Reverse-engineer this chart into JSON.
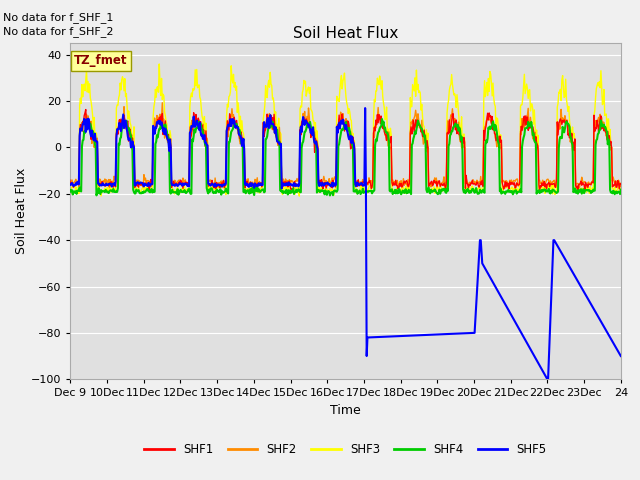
{
  "title": "Soil Heat Flux",
  "ylabel": "Soil Heat Flux",
  "xlabel": "Time",
  "ylim": [
    -100,
    45
  ],
  "yticks": [
    -100,
    -80,
    -60,
    -40,
    -20,
    0,
    20,
    40
  ],
  "fig_bg": "#f0f0f0",
  "ax_bg": "#e0e0e0",
  "no_data_text1": "No data for f_SHF_1",
  "no_data_text2": "No data for f_SHF_2",
  "tz_label": "TZ_fmet",
  "colors": {
    "SHF1": "#ff0000",
    "SHF2": "#ff8c00",
    "SHF3": "#ffff00",
    "SHF4": "#00cc00",
    "SHF5": "#0000ff"
  },
  "xlim": [
    9,
    24
  ],
  "xtick_positions": [
    9,
    10,
    11,
    12,
    13,
    14,
    15,
    16,
    17,
    18,
    19,
    20,
    21,
    22,
    23,
    24
  ],
  "xtick_labels": [
    "Dec 9",
    "10Dec",
    "11Dec",
    "12Dec",
    "13Dec",
    "14Dec",
    "15Dec",
    "16Dec",
    "17Dec",
    "18Dec",
    "19Dec",
    "20Dec",
    "21Dec",
    "22Dec",
    "23Dec",
    "24"
  ]
}
